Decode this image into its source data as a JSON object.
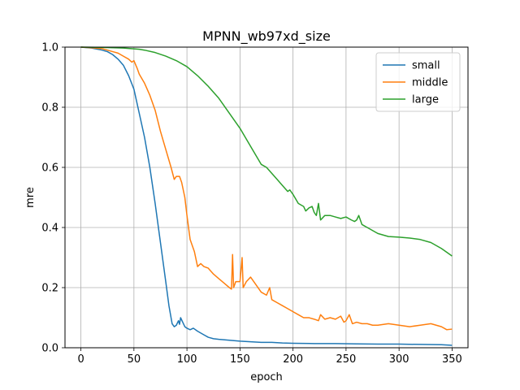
{
  "chart_data": {
    "type": "line",
    "title": "MPNN_wb97xd_size",
    "xlabel": "epoch",
    "ylabel": "mre",
    "xlim": [
      -15,
      365
    ],
    "ylim": [
      0,
      1.0
    ],
    "xticks": [
      0,
      50,
      100,
      150,
      200,
      250,
      300,
      350
    ],
    "yticks": [
      0.0,
      0.2,
      0.4,
      0.6,
      0.8,
      1.0
    ],
    "grid": true,
    "legend_position": "top-right",
    "series": [
      {
        "name": "small",
        "color": "#1f77b4",
        "points": [
          [
            0,
            1.0
          ],
          [
            10,
            0.997
          ],
          [
            20,
            0.99
          ],
          [
            25,
            0.985
          ],
          [
            30,
            0.975
          ],
          [
            35,
            0.96
          ],
          [
            40,
            0.94
          ],
          [
            45,
            0.905
          ],
          [
            50,
            0.86
          ],
          [
            55,
            0.78
          ],
          [
            60,
            0.7
          ],
          [
            65,
            0.6
          ],
          [
            70,
            0.48
          ],
          [
            75,
            0.35
          ],
          [
            80,
            0.22
          ],
          [
            83,
            0.14
          ],
          [
            86,
            0.08
          ],
          [
            88,
            0.07
          ],
          [
            90,
            0.075
          ],
          [
            92,
            0.09
          ],
          [
            93,
            0.078
          ],
          [
            94,
            0.1
          ],
          [
            96,
            0.085
          ],
          [
            98,
            0.07
          ],
          [
            100,
            0.065
          ],
          [
            103,
            0.06
          ],
          [
            106,
            0.065
          ],
          [
            110,
            0.055
          ],
          [
            115,
            0.045
          ],
          [
            120,
            0.035
          ],
          [
            125,
            0.03
          ],
          [
            130,
            0.028
          ],
          [
            140,
            0.025
          ],
          [
            150,
            0.022
          ],
          [
            160,
            0.02
          ],
          [
            170,
            0.018
          ],
          [
            180,
            0.018
          ],
          [
            190,
            0.016
          ],
          [
            200,
            0.015
          ],
          [
            220,
            0.014
          ],
          [
            240,
            0.014
          ],
          [
            260,
            0.013
          ],
          [
            280,
            0.012
          ],
          [
            300,
            0.012
          ],
          [
            320,
            0.011
          ],
          [
            340,
            0.01
          ],
          [
            350,
            0.008
          ]
        ]
      },
      {
        "name": "middle",
        "color": "#ff7f0e",
        "points": [
          [
            0,
            1.0
          ],
          [
            10,
            0.998
          ],
          [
            20,
            0.995
          ],
          [
            25,
            0.99
          ],
          [
            30,
            0.985
          ],
          [
            35,
            0.98
          ],
          [
            40,
            0.97
          ],
          [
            45,
            0.96
          ],
          [
            48,
            0.95
          ],
          [
            50,
            0.955
          ],
          [
            53,
            0.93
          ],
          [
            55,
            0.91
          ],
          [
            60,
            0.88
          ],
          [
            65,
            0.84
          ],
          [
            70,
            0.79
          ],
          [
            75,
            0.72
          ],
          [
            80,
            0.66
          ],
          [
            85,
            0.6
          ],
          [
            88,
            0.56
          ],
          [
            90,
            0.57
          ],
          [
            93,
            0.57
          ],
          [
            95,
            0.55
          ],
          [
            98,
            0.5
          ],
          [
            100,
            0.44
          ],
          [
            103,
            0.36
          ],
          [
            105,
            0.34
          ],
          [
            107,
            0.32
          ],
          [
            110,
            0.27
          ],
          [
            113,
            0.28
          ],
          [
            116,
            0.27
          ],
          [
            120,
            0.265
          ],
          [
            125,
            0.245
          ],
          [
            130,
            0.23
          ],
          [
            135,
            0.215
          ],
          [
            140,
            0.2
          ],
          [
            142,
            0.195
          ],
          [
            143,
            0.31
          ],
          [
            144,
            0.2
          ],
          [
            146,
            0.22
          ],
          [
            150,
            0.22
          ],
          [
            152,
            0.3
          ],
          [
            153,
            0.2
          ],
          [
            156,
            0.22
          ],
          [
            160,
            0.235
          ],
          [
            165,
            0.21
          ],
          [
            170,
            0.185
          ],
          [
            175,
            0.175
          ],
          [
            178,
            0.2
          ],
          [
            180,
            0.16
          ],
          [
            185,
            0.15
          ],
          [
            190,
            0.14
          ],
          [
            195,
            0.13
          ],
          [
            200,
            0.12
          ],
          [
            205,
            0.11
          ],
          [
            210,
            0.1
          ],
          [
            215,
            0.1
          ],
          [
            220,
            0.095
          ],
          [
            224,
            0.09
          ],
          [
            226,
            0.11
          ],
          [
            230,
            0.095
          ],
          [
            235,
            0.1
          ],
          [
            240,
            0.095
          ],
          [
            245,
            0.105
          ],
          [
            248,
            0.085
          ],
          [
            250,
            0.09
          ],
          [
            253,
            0.11
          ],
          [
            256,
            0.08
          ],
          [
            260,
            0.085
          ],
          [
            265,
            0.08
          ],
          [
            270,
            0.08
          ],
          [
            275,
            0.075
          ],
          [
            280,
            0.075
          ],
          [
            290,
            0.08
          ],
          [
            300,
            0.075
          ],
          [
            310,
            0.07
          ],
          [
            320,
            0.075
          ],
          [
            330,
            0.08
          ],
          [
            340,
            0.07
          ],
          [
            345,
            0.06
          ],
          [
            350,
            0.062
          ]
        ]
      },
      {
        "name": "large",
        "color": "#2ca02c",
        "points": [
          [
            0,
            1.0
          ],
          [
            20,
            0.999
          ],
          [
            40,
            0.997
          ],
          [
            55,
            0.993
          ],
          [
            60,
            0.99
          ],
          [
            70,
            0.982
          ],
          [
            80,
            0.97
          ],
          [
            90,
            0.955
          ],
          [
            100,
            0.935
          ],
          [
            110,
            0.905
          ],
          [
            120,
            0.87
          ],
          [
            130,
            0.83
          ],
          [
            140,
            0.78
          ],
          [
            150,
            0.73
          ],
          [
            160,
            0.67
          ],
          [
            170,
            0.61
          ],
          [
            175,
            0.6
          ],
          [
            180,
            0.58
          ],
          [
            185,
            0.56
          ],
          [
            190,
            0.54
          ],
          [
            195,
            0.52
          ],
          [
            197,
            0.525
          ],
          [
            200,
            0.51
          ],
          [
            205,
            0.48
          ],
          [
            210,
            0.47
          ],
          [
            212,
            0.455
          ],
          [
            215,
            0.465
          ],
          [
            218,
            0.47
          ],
          [
            220,
            0.45
          ],
          [
            222,
            0.44
          ],
          [
            224,
            0.48
          ],
          [
            226,
            0.425
          ],
          [
            230,
            0.44
          ],
          [
            235,
            0.44
          ],
          [
            240,
            0.435
          ],
          [
            245,
            0.43
          ],
          [
            250,
            0.435
          ],
          [
            255,
            0.425
          ],
          [
            258,
            0.42
          ],
          [
            260,
            0.425
          ],
          [
            262,
            0.44
          ],
          [
            265,
            0.41
          ],
          [
            270,
            0.4
          ],
          [
            280,
            0.38
          ],
          [
            290,
            0.37
          ],
          [
            300,
            0.368
          ],
          [
            310,
            0.365
          ],
          [
            320,
            0.36
          ],
          [
            330,
            0.35
          ],
          [
            340,
            0.33
          ],
          [
            350,
            0.305
          ]
        ]
      }
    ]
  }
}
